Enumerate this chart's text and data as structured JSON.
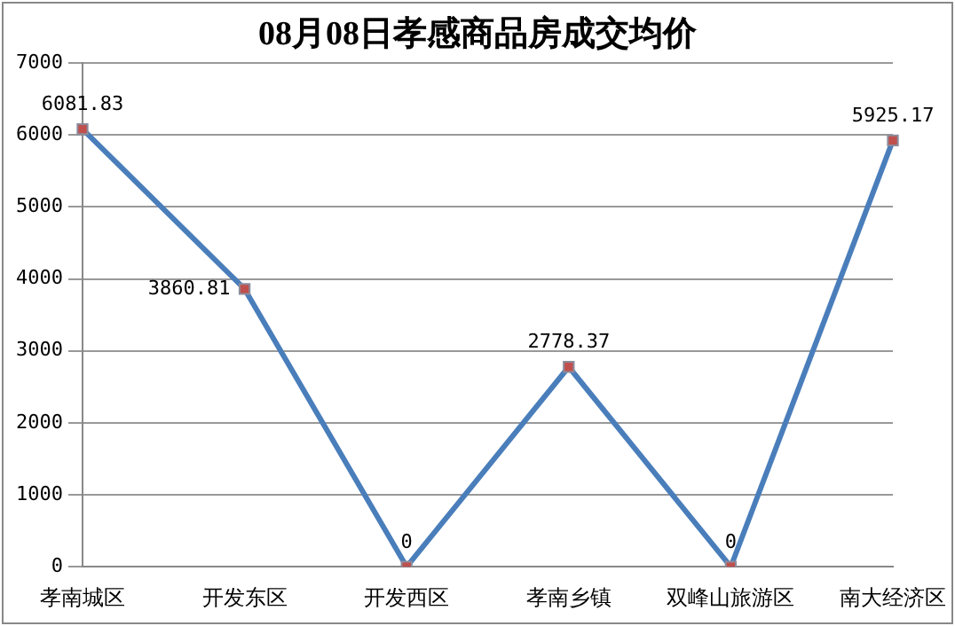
{
  "chart_data": {
    "type": "line",
    "title": "08月08日孝感商品房成交均价",
    "categories": [
      "孝南城区",
      "开发东区",
      "开发西区",
      "孝南乡镇",
      "双峰山旅游区",
      "南大经济区"
    ],
    "series": [
      {
        "color": "#4a7ebb",
        "values": [
          6081.83,
          3860.81,
          0,
          2778.37,
          0,
          5925.17
        ]
      }
    ],
    "ylim": [
      0,
      7000
    ],
    "yticks": [
      0,
      1000,
      2000,
      3000,
      4000,
      5000,
      6000,
      7000
    ],
    "grid": "y",
    "legend": false,
    "marker": "square",
    "data_labels": true
  }
}
